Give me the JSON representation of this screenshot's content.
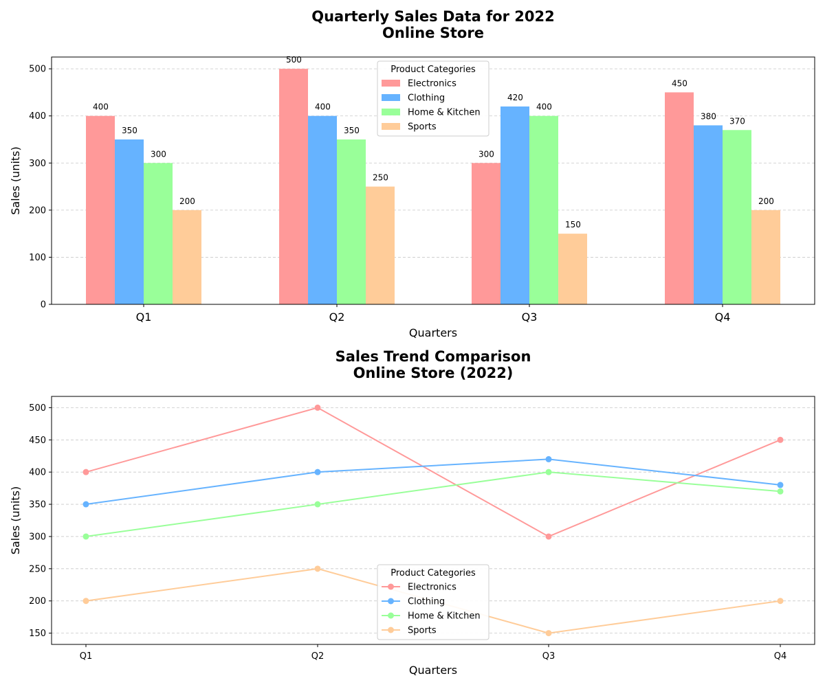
{
  "chart_data": [
    {
      "type": "bar",
      "title_lines": [
        "Quarterly Sales Data for 2022",
        "Online Store"
      ],
      "xlabel": "Quarters",
      "ylabel": "Sales (units)",
      "ylim": [
        0,
        525
      ],
      "yticks": [
        0,
        100,
        200,
        300,
        400,
        500
      ],
      "grid": "y-dashed",
      "legend_title": "Product Categories",
      "legend_position": "top-center",
      "categories": [
        "Q1",
        "Q2",
        "Q3",
        "Q4"
      ],
      "series": [
        {
          "name": "Electronics",
          "color": "#ff9999",
          "values": [
            400,
            500,
            300,
            450
          ]
        },
        {
          "name": "Clothing",
          "color": "#66b3ff",
          "values": [
            350,
            400,
            420,
            380
          ]
        },
        {
          "name": "Home & Kitchen",
          "color": "#99ff99",
          "values": [
            300,
            350,
            400,
            370
          ]
        },
        {
          "name": "Sports",
          "color": "#ffcc99",
          "values": [
            200,
            250,
            150,
            200
          ]
        }
      ]
    },
    {
      "type": "line",
      "title_lines": [
        "Sales Trend Comparison",
        "Online Store (2022)"
      ],
      "xlabel": "Quarters",
      "ylabel": "Sales (units)",
      "ylim": [
        132.5,
        517.5
      ],
      "yticks": [
        150,
        200,
        250,
        300,
        350,
        400,
        450,
        500
      ],
      "grid": "y-dashed",
      "legend_title": "Product Categories",
      "legend_position": "bottom-center",
      "markers": "circle",
      "categories": [
        "Q1",
        "Q2",
        "Q3",
        "Q4"
      ],
      "series": [
        {
          "name": "Electronics",
          "color": "#ff9999",
          "values": [
            400,
            500,
            300,
            450
          ]
        },
        {
          "name": "Clothing",
          "color": "#66b3ff",
          "values": [
            350,
            400,
            420,
            380
          ]
        },
        {
          "name": "Home & Kitchen",
          "color": "#99ff99",
          "values": [
            300,
            350,
            400,
            370
          ]
        },
        {
          "name": "Sports",
          "color": "#ffcc99",
          "values": [
            200,
            250,
            150,
            200
          ]
        }
      ]
    }
  ]
}
